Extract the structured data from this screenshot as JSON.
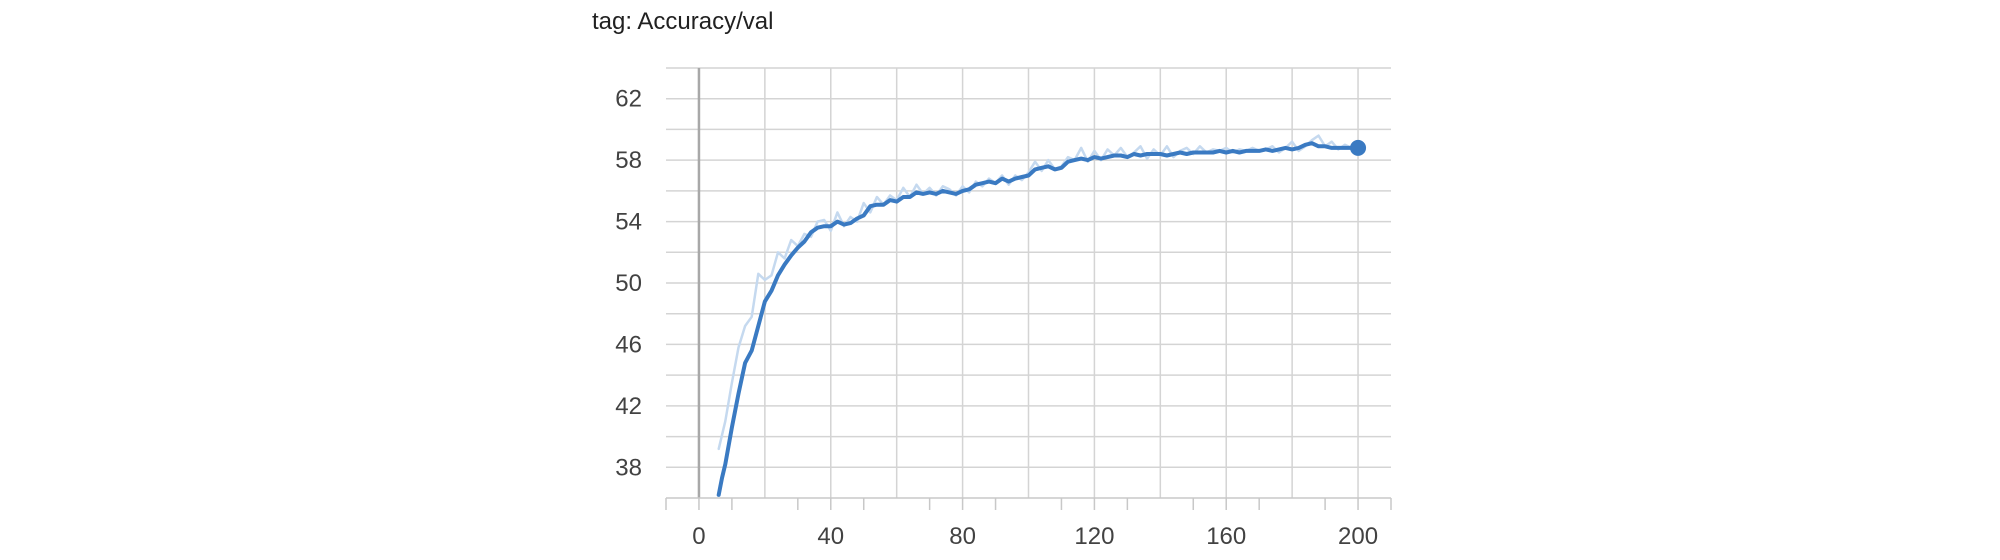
{
  "chart_data": {
    "type": "line",
    "title": "tag: Accuracy/val",
    "xlabel": "",
    "ylabel": "",
    "xlim": [
      -10,
      210
    ],
    "ylim": [
      36,
      64
    ],
    "x_ticks": [
      0,
      40,
      80,
      120,
      160,
      200
    ],
    "y_ticks": [
      38,
      42,
      46,
      50,
      54,
      58,
      62
    ],
    "grid": true,
    "color_smoothed": "#3a7ac2",
    "color_raw": "#c5d9ef",
    "series": [
      {
        "role": "raw",
        "x": [
          6,
          8,
          10,
          12,
          14,
          16,
          18,
          20,
          22,
          24,
          26,
          28,
          30,
          32,
          34,
          36,
          38,
          40,
          42,
          44,
          46,
          48,
          50,
          52,
          54,
          56,
          58,
          60,
          62,
          64,
          66,
          68,
          70,
          72,
          74,
          76,
          78,
          80,
          82,
          84,
          86,
          88,
          90,
          92,
          94,
          96,
          98,
          100,
          102,
          104,
          106,
          108,
          110,
          112,
          114,
          116,
          118,
          120,
          122,
          124,
          126,
          128,
          130,
          132,
          134,
          136,
          138,
          140,
          142,
          144,
          146,
          148,
          150,
          152,
          154,
          156,
          158,
          160,
          162,
          164,
          166,
          168,
          170,
          172,
          174,
          176,
          178,
          180,
          182,
          184,
          186,
          188,
          190,
          192,
          194,
          196,
          198,
          200
        ],
        "y": [
          39.2,
          41.0,
          43.5,
          45.8,
          47.2,
          47.8,
          50.6,
          50.2,
          50.5,
          52.0,
          51.6,
          52.8,
          52.4,
          53.2,
          53.0,
          54.0,
          54.1,
          53.4,
          54.6,
          53.7,
          54.3,
          54.0,
          55.2,
          54.6,
          55.6,
          55.1,
          55.7,
          55.4,
          56.2,
          55.6,
          56.4,
          55.8,
          56.2,
          55.7,
          56.3,
          56.1,
          55.7,
          56.3,
          55.9,
          56.6,
          56.3,
          56.8,
          56.5,
          57.0,
          56.4,
          57.0,
          56.7,
          57.2,
          57.9,
          57.3,
          58.0,
          57.4,
          57.6,
          58.2,
          58.0,
          58.8,
          57.9,
          58.6,
          58.0,
          58.7,
          58.3,
          58.8,
          58.2,
          58.5,
          58.9,
          58.1,
          58.7,
          58.3,
          58.9,
          58.2,
          58.6,
          58.8,
          58.4,
          58.9,
          58.5,
          58.7,
          58.6,
          58.8,
          58.5,
          58.7,
          58.6,
          58.8,
          58.6,
          58.7,
          58.9,
          58.5,
          58.8,
          59.2,
          58.6,
          58.9,
          59.3,
          59.6,
          58.9,
          59.2,
          58.7,
          59.0,
          58.8,
          58.8
        ]
      },
      {
        "role": "smoothed",
        "x": [
          6,
          7,
          8,
          10,
          12,
          14,
          16,
          18,
          20,
          22,
          24,
          26,
          28,
          30,
          32,
          34,
          36,
          38,
          40,
          42,
          44,
          46,
          48,
          50,
          52,
          54,
          56,
          58,
          60,
          62,
          64,
          66,
          68,
          70,
          72,
          74,
          76,
          78,
          80,
          82,
          84,
          86,
          88,
          90,
          92,
          94,
          96,
          98,
          100,
          102,
          104,
          106,
          108,
          110,
          112,
          114,
          116,
          118,
          120,
          122,
          124,
          126,
          128,
          130,
          132,
          134,
          136,
          138,
          140,
          142,
          144,
          146,
          148,
          150,
          152,
          154,
          156,
          158,
          160,
          162,
          164,
          166,
          168,
          170,
          172,
          174,
          176,
          178,
          180,
          182,
          184,
          186,
          188,
          190,
          192,
          194,
          196,
          198,
          200
        ],
        "y": [
          36.2,
          37.3,
          38.2,
          40.6,
          42.8,
          44.8,
          45.6,
          47.2,
          48.8,
          49.5,
          50.5,
          51.2,
          51.8,
          52.3,
          52.7,
          53.3,
          53.6,
          53.7,
          53.7,
          54.0,
          53.8,
          53.9,
          54.2,
          54.4,
          55.0,
          55.1,
          55.1,
          55.4,
          55.3,
          55.6,
          55.6,
          55.9,
          55.8,
          55.9,
          55.8,
          56.0,
          55.9,
          55.8,
          56.0,
          56.1,
          56.4,
          56.5,
          56.6,
          56.5,
          56.8,
          56.6,
          56.8,
          56.9,
          57.0,
          57.4,
          57.5,
          57.6,
          57.4,
          57.5,
          57.9,
          58.0,
          58.1,
          58.0,
          58.2,
          58.1,
          58.2,
          58.3,
          58.3,
          58.2,
          58.4,
          58.3,
          58.4,
          58.4,
          58.4,
          58.3,
          58.4,
          58.5,
          58.4,
          58.5,
          58.5,
          58.5,
          58.5,
          58.6,
          58.5,
          58.6,
          58.5,
          58.6,
          58.6,
          58.6,
          58.7,
          58.6,
          58.7,
          58.8,
          58.7,
          58.8,
          59.0,
          59.1,
          58.9,
          58.9,
          58.8,
          58.8,
          58.8,
          58.8,
          58.8
        ]
      }
    ]
  }
}
